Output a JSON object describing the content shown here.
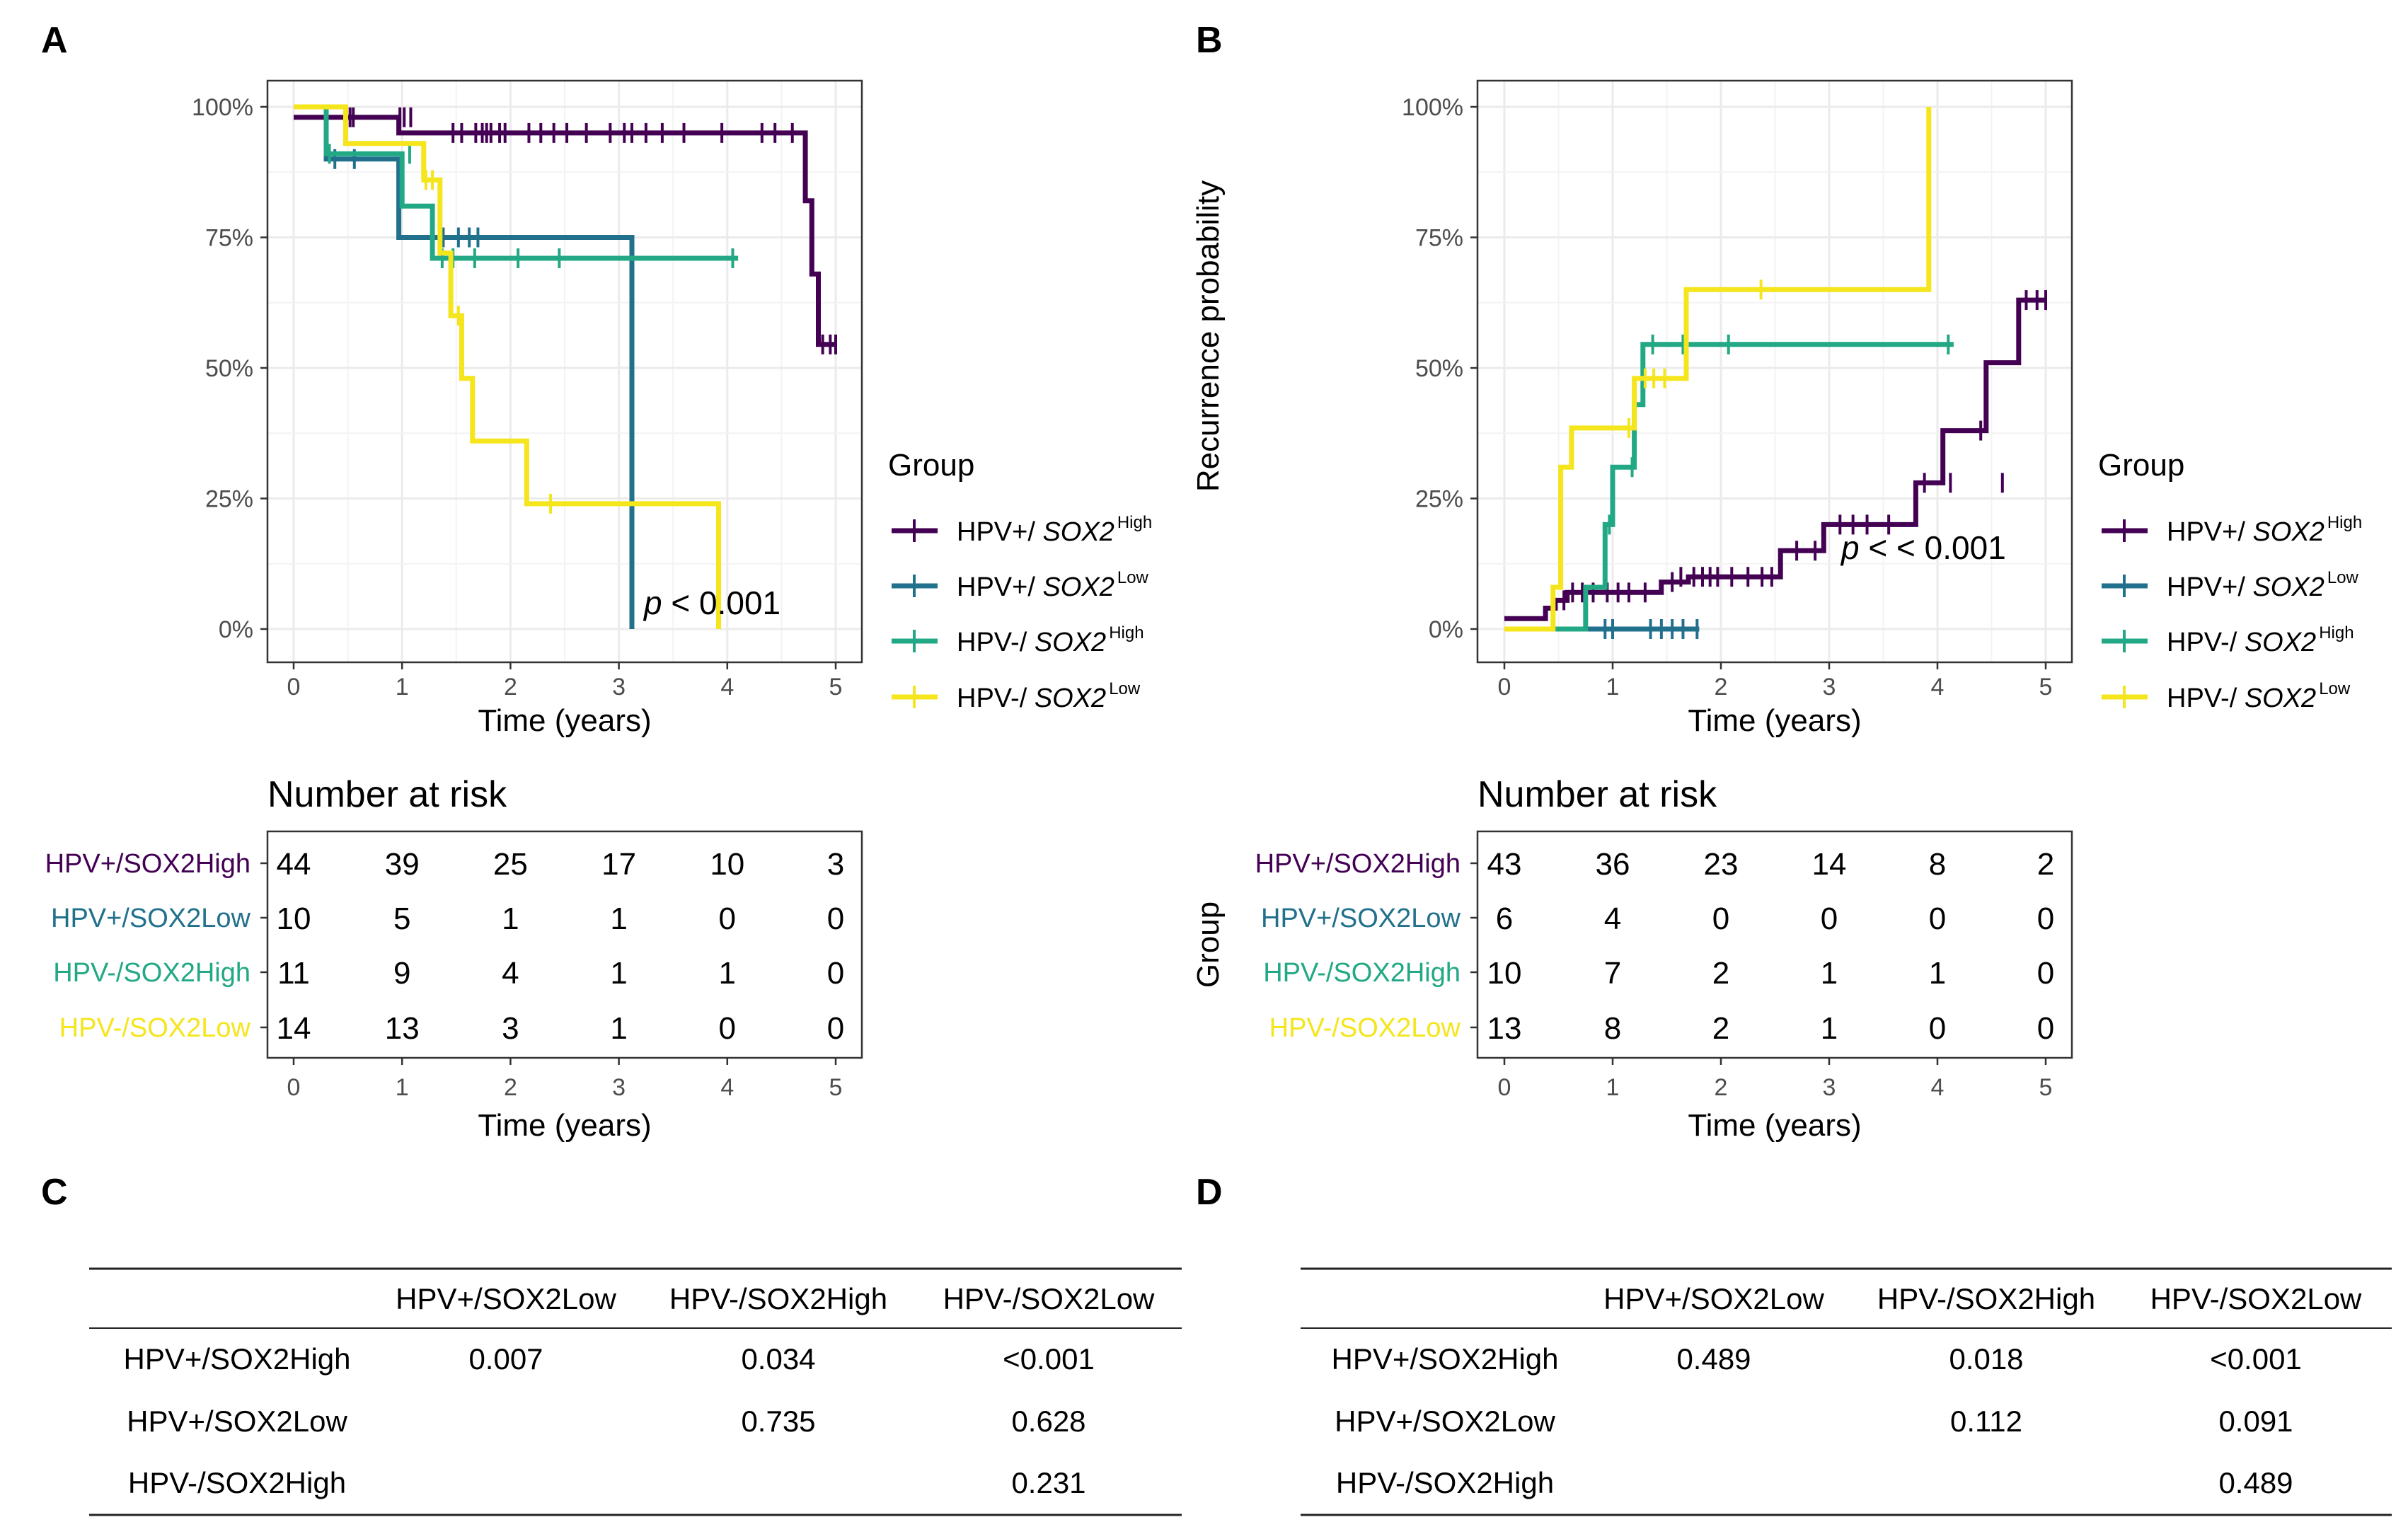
{
  "colors": {
    "HPV+/SOX2High": "#440154",
    "HPV+/SOX2Low": "#21708C",
    "HPV-/SOX2High": "#22A884",
    "HPV-/SOX2Low": "#F5E51D"
  },
  "chart_data": [
    {
      "panel": "A",
      "type": "line",
      "subtype": "kaplan-meier",
      "xlabel": "Time (years)",
      "ylabel": "",
      "xlim": [
        0,
        5
      ],
      "ylim": [
        0,
        1
      ],
      "xticks": [
        0,
        1,
        2,
        3,
        4,
        5
      ],
      "yticks": [
        "0%",
        "25%",
        "50%",
        "75%",
        "100%"
      ],
      "p_value": "p < 0.001",
      "legend_title": "Group",
      "legend": [
        {
          "prefix": "HPV+/ ",
          "gene": "SOX2",
          "sup": "High",
          "key": "HPV+/SOX2High"
        },
        {
          "prefix": "HPV+/ ",
          "gene": "SOX2",
          "sup": "Low",
          "key": "HPV+/SOX2Low"
        },
        {
          "prefix": "HPV-/ ",
          "gene": "SOX2",
          "sup": "High",
          "key": "HPV-/SOX2High"
        },
        {
          "prefix": "HPV-/ ",
          "gene": "SOX2",
          "sup": "Low",
          "key": "HPV-/SOX2Low"
        }
      ],
      "series": [
        {
          "name": "HPV+/SOX2High",
          "x": [
            0,
            0,
            0.97,
            0.97,
            2.8,
            4.72,
            4.72,
            4.78,
            4.78,
            4.84,
            4.84,
            5.0
          ],
          "y": [
            0.98,
            0.98,
            0.98,
            0.95,
            0.95,
            0.95,
            0.82,
            0.82,
            0.68,
            0.68,
            0.545,
            0.545
          ],
          "censors": [
            [
              0.52,
              0.98
            ],
            [
              0.55,
              0.98
            ],
            [
              0.98,
              0.98
            ],
            [
              1.02,
              0.98
            ],
            [
              1.08,
              0.98
            ],
            [
              1.47,
              0.95
            ],
            [
              1.55,
              0.95
            ],
            [
              1.68,
              0.95
            ],
            [
              1.74,
              0.95
            ],
            [
              1.78,
              0.95
            ],
            [
              1.82,
              0.95
            ],
            [
              1.9,
              0.95
            ],
            [
              1.95,
              0.95
            ],
            [
              2.17,
              0.95
            ],
            [
              2.28,
              0.95
            ],
            [
              2.4,
              0.95
            ],
            [
              2.52,
              0.95
            ],
            [
              2.7,
              0.95
            ],
            [
              2.92,
              0.95
            ],
            [
              3.05,
              0.95
            ],
            [
              3.12,
              0.95
            ],
            [
              3.25,
              0.95
            ],
            [
              3.4,
              0.95
            ],
            [
              3.6,
              0.95
            ],
            [
              3.95,
              0.95
            ],
            [
              4.32,
              0.95
            ],
            [
              4.44,
              0.95
            ],
            [
              4.6,
              0.95
            ],
            [
              4.88,
              0.545
            ],
            [
              4.95,
              0.545
            ],
            [
              5.0,
              0.545
            ]
          ]
        },
        {
          "name": "HPV+/SOX2Low",
          "x": [
            0,
            0.3,
            0.3,
            0.97,
            0.97,
            3.12,
            3.12
          ],
          "y": [
            1.0,
            1.0,
            0.9,
            0.9,
            0.75,
            0.75,
            0.0
          ],
          "censors": [
            [
              0.38,
              0.9
            ],
            [
              0.56,
              0.9
            ],
            [
              1.38,
              0.75
            ],
            [
              1.52,
              0.75
            ],
            [
              1.62,
              0.75
            ],
            [
              1.7,
              0.75
            ]
          ]
        },
        {
          "name": "HPV-/SOX2High",
          "x": [
            0,
            0.3,
            0.3,
            1.0,
            1.0,
            1.28,
            1.28,
            4.1
          ],
          "y": [
            1.0,
            1.0,
            0.91,
            0.91,
            0.81,
            0.81,
            0.71,
            0.71
          ],
          "censors": [
            [
              0.33,
              0.91
            ],
            [
              1.07,
              0.91
            ],
            [
              1.37,
              0.71
            ],
            [
              1.47,
              0.71
            ],
            [
              1.67,
              0.71
            ],
            [
              2.07,
              0.71
            ],
            [
              2.45,
              0.71
            ],
            [
              4.05,
              0.71
            ]
          ]
        },
        {
          "name": "HPV-/SOX2Low",
          "x": [
            0,
            0.48,
            0.48,
            1.2,
            1.2,
            1.35,
            1.35,
            1.45,
            1.45,
            1.55,
            1.55,
            1.65,
            1.65,
            2.15,
            2.15,
            3.92,
            3.92
          ],
          "y": [
            1.0,
            1.0,
            0.93,
            0.93,
            0.86,
            0.86,
            0.72,
            0.72,
            0.6,
            0.6,
            0.48,
            0.48,
            0.36,
            0.36,
            0.24,
            0.24,
            0.0
          ],
          "censors": [
            [
              1.22,
              0.86
            ],
            [
              1.28,
              0.86
            ],
            [
              1.52,
              0.6
            ],
            [
              2.37,
              0.24
            ]
          ]
        }
      ],
      "risk_table": {
        "title": "Number at risk",
        "xlabel": "Time (years)",
        "ylabel": "",
        "rows": [
          {
            "label": "HPV+/SOX2High",
            "key": "HPV+/SOX2High",
            "values": [
              "44",
              "39",
              "25",
              "17",
              "10",
              "3"
            ]
          },
          {
            "label": "HPV+/SOX2Low",
            "key": "HPV+/SOX2Low",
            "values": [
              "10",
              "5",
              "1",
              "1",
              "0",
              "0"
            ]
          },
          {
            "label": "HPV-/SOX2High",
            "key": "HPV-/SOX2High",
            "values": [
              "11",
              "9",
              "4",
              "1",
              "1",
              "0"
            ]
          },
          {
            "label": "HPV-/SOX2Low",
            "key": "HPV-/SOX2Low",
            "values": [
              "14",
              "13",
              "3",
              "1",
              "0",
              "0"
            ]
          }
        ]
      }
    },
    {
      "panel": "B",
      "type": "line",
      "subtype": "cumulative-incidence",
      "xlabel": "Time (years)",
      "ylabel": "Recurrence probability",
      "xlim": [
        0,
        5
      ],
      "ylim": [
        0,
        1
      ],
      "xticks": [
        0,
        1,
        2,
        3,
        4,
        5
      ],
      "yticks": [
        "0%",
        "25%",
        "50%",
        "75%",
        "100%"
      ],
      "p_value": "p < < 0.001",
      "legend_title": "Group",
      "legend": [
        {
          "prefix": "HPV+/ ",
          "gene": "SOX2",
          "sup": "High",
          "key": "HPV+/SOX2High"
        },
        {
          "prefix": "HPV+/ ",
          "gene": "SOX2",
          "sup": "Low",
          "key": "HPV+/SOX2Low"
        },
        {
          "prefix": "HPV-/ ",
          "gene": "SOX2",
          "sup": "High",
          "key": "HPV-/SOX2High"
        },
        {
          "prefix": "HPV-/ ",
          "gene": "SOX2",
          "sup": "Low",
          "key": "HPV-/SOX2Low"
        }
      ],
      "series": [
        {
          "name": "HPV+/SOX2High",
          "x": [
            0,
            0.38,
            0.38,
            0.47,
            0.47,
            0.58,
            0.58,
            1.45,
            1.45,
            1.7,
            1.7,
            2.55,
            2.55,
            2.95,
            2.95,
            3.8,
            3.8,
            4.05,
            4.05,
            4.45,
            4.45,
            4.75,
            4.75,
            5.0
          ],
          "y": [
            0.02,
            0.02,
            0.04,
            0.04,
            0.055,
            0.055,
            0.07,
            0.07,
            0.09,
            0.09,
            0.1,
            0.1,
            0.15,
            0.15,
            0.2,
            0.2,
            0.28,
            0.28,
            0.38,
            0.38,
            0.51,
            0.51,
            0.63,
            0.63
          ],
          "censors": [
            [
              0.45,
              0.04
            ],
            [
              0.55,
              0.055
            ],
            [
              0.63,
              0.07
            ],
            [
              0.72,
              0.07
            ],
            [
              0.82,
              0.07
            ],
            [
              0.95,
              0.07
            ],
            [
              1.05,
              0.07
            ],
            [
              1.15,
              0.07
            ],
            [
              1.3,
              0.07
            ],
            [
              1.55,
              0.09
            ],
            [
              1.63,
              0.1
            ],
            [
              1.75,
              0.1
            ],
            [
              1.83,
              0.1
            ],
            [
              1.9,
              0.1
            ],
            [
              1.97,
              0.1
            ],
            [
              2.1,
              0.1
            ],
            [
              2.25,
              0.1
            ],
            [
              2.38,
              0.1
            ],
            [
              2.47,
              0.1
            ],
            [
              2.7,
              0.15
            ],
            [
              2.87,
              0.15
            ],
            [
              3.1,
              0.2
            ],
            [
              3.22,
              0.2
            ],
            [
              3.35,
              0.2
            ],
            [
              3.55,
              0.2
            ],
            [
              3.88,
              0.28
            ],
            [
              4.12,
              0.28
            ],
            [
              4.4,
              0.38
            ],
            [
              4.6,
              0.28
            ],
            [
              4.82,
              0.63
            ],
            [
              4.92,
              0.63
            ],
            [
              5.0,
              0.63
            ]
          ]
        },
        {
          "name": "HPV+/SOX2Low",
          "x": [
            0.45,
            1.8
          ],
          "y": [
            0.0,
            0.0
          ],
          "censors": [
            [
              0.93,
              0.0
            ],
            [
              1.0,
              0.0
            ],
            [
              1.35,
              0.0
            ],
            [
              1.45,
              0.0
            ],
            [
              1.55,
              0.0
            ],
            [
              1.65,
              0.0
            ],
            [
              1.78,
              0.0
            ]
          ]
        },
        {
          "name": "HPV-/SOX2High",
          "x": [
            0,
            0.75,
            0.75,
            0.93,
            0.93,
            1.0,
            1.0,
            1.2,
            1.2,
            1.28,
            1.28,
            4.15
          ],
          "y": [
            0.0,
            0.0,
            0.08,
            0.08,
            0.2,
            0.2,
            0.31,
            0.31,
            0.43,
            0.43,
            0.545,
            0.545
          ],
          "censors": [
            [
              0.97,
              0.2
            ],
            [
              1.18,
              0.31
            ],
            [
              1.37,
              0.545
            ],
            [
              1.65,
              0.545
            ],
            [
              2.07,
              0.545
            ],
            [
              4.1,
              0.545
            ]
          ]
        },
        {
          "name": "HPV-/SOX2Low",
          "x": [
            0,
            0.45,
            0.45,
            0.52,
            0.52,
            0.62,
            0.62,
            1.2,
            1.2,
            1.68,
            1.68,
            3.92,
            3.92
          ],
          "y": [
            0.0,
            0.0,
            0.08,
            0.08,
            0.31,
            0.31,
            0.385,
            0.385,
            0.48,
            0.48,
            0.65,
            0.65,
            1.0
          ],
          "censors": [
            [
              1.15,
              0.385
            ],
            [
              1.3,
              0.48
            ],
            [
              1.38,
              0.48
            ],
            [
              1.48,
              0.48
            ],
            [
              2.37,
              0.65
            ]
          ]
        }
      ],
      "risk_table": {
        "title": "Number at risk",
        "xlabel": "Time (years)",
        "ylabel": "Group",
        "rows": [
          {
            "label": "HPV+/SOX2High",
            "key": "HPV+/SOX2High",
            "values": [
              "43",
              "36",
              "23",
              "14",
              "8",
              "2"
            ]
          },
          {
            "label": "HPV+/SOX2Low",
            "key": "HPV+/SOX2Low",
            "values": [
              "6",
              "4",
              "0",
              "0",
              "0",
              "0"
            ]
          },
          {
            "label": "HPV-/SOX2High",
            "key": "HPV-/SOX2High",
            "values": [
              "10",
              "7",
              "2",
              "1",
              "1",
              "0"
            ]
          },
          {
            "label": "HPV-/SOX2Low",
            "key": "HPV-/SOX2Low",
            "values": [
              "13",
              "8",
              "2",
              "1",
              "0",
              "0"
            ]
          }
        ]
      }
    },
    {
      "panel": "C",
      "type": "table",
      "columns": [
        "",
        "HPV+/SOX2Low",
        "HPV-/SOX2High",
        "HPV-/SOX2Low"
      ],
      "rows": [
        [
          "HPV+/SOX2High",
          "0.007",
          "0.034",
          "<0.001"
        ],
        [
          "HPV+/SOX2Low",
          "",
          "0.735",
          "0.628"
        ],
        [
          "HPV-/SOX2High",
          "",
          "",
          "0.231"
        ]
      ]
    },
    {
      "panel": "D",
      "type": "table",
      "columns": [
        "",
        "HPV+/SOX2Low",
        "HPV-/SOX2High",
        "HPV-/SOX2Low"
      ],
      "rows": [
        [
          "HPV+/SOX2High",
          "0.489",
          "0.018",
          "<0.001"
        ],
        [
          "HPV+/SOX2Low",
          "",
          "0.112",
          "0.091"
        ],
        [
          "HPV-/SOX2High",
          "",
          "",
          "0.489"
        ]
      ]
    }
  ]
}
